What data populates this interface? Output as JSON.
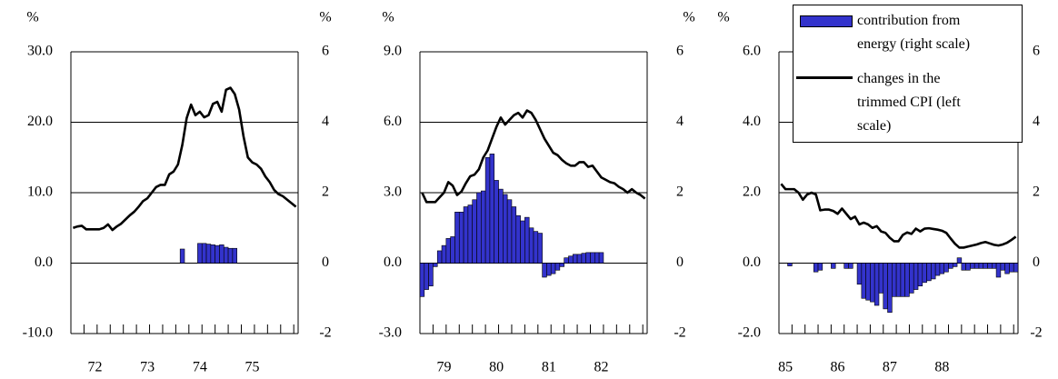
{
  "chart_data": [
    {
      "type": "combo",
      "ylabel": "%",
      "y2label": "%",
      "categories": [
        null,
        null,
        null,
        null,
        null,
        "72",
        null,
        null,
        null,
        null,
        null,
        null,
        null,
        null,
        null,
        null,
        null,
        "73",
        null,
        null,
        null,
        null,
        null,
        null,
        null,
        null,
        null,
        null,
        null,
        "74",
        null,
        null,
        null,
        null,
        null,
        null,
        null,
        null,
        null,
        null,
        null,
        "75",
        null,
        null,
        null,
        null,
        null,
        null,
        null,
        null,
        null,
        null
      ],
      "ylim": [
        -10,
        30
      ],
      "yticks": [
        {
          "value": -10,
          "label": "-10.0"
        },
        {
          "value": 0,
          "label": "0.0"
        },
        {
          "value": 10,
          "label": "10.0"
        },
        {
          "value": 20,
          "label": "20.0"
        },
        {
          "value": 30,
          "label": "30.0"
        }
      ],
      "y2lim": [
        -2,
        6
      ],
      "y2ticks": [
        -2,
        0,
        2,
        4,
        6
      ],
      "grid": true,
      "series": [
        {
          "type": "bar",
          "axis": "y2",
          "color": "#3333CC",
          "values": [
            null,
            null,
            null,
            null,
            null,
            null,
            null,
            null,
            null,
            null,
            null,
            null,
            null,
            null,
            null,
            null,
            null,
            null,
            null,
            null,
            null,
            null,
            null,
            null,
            null,
            0.4,
            null,
            null,
            null,
            0.56,
            0.56,
            0.54,
            0.52,
            0.5,
            0.52,
            0.45,
            0.42,
            0.42,
            null,
            null,
            null,
            null,
            null,
            null,
            null,
            null,
            null,
            null,
            null,
            null,
            null,
            null
          ]
        },
        {
          "type": "line",
          "color": "#000000",
          "values": [
            5.0,
            5.2,
            5.3,
            4.8,
            4.8,
            4.8,
            4.8,
            5.0,
            5.5,
            4.7,
            5.2,
            5.6,
            6.2,
            6.8,
            7.3,
            8.0,
            8.8,
            9.2,
            10.0,
            10.8,
            11.1,
            11.1,
            12.6,
            13.0,
            14.0,
            16.8,
            20.6,
            22.5,
            21.0,
            21.5,
            20.7,
            21.0,
            22.6,
            22.9,
            21.5,
            24.6,
            24.9,
            24.0,
            21.8,
            18.0,
            15.0,
            14.3,
            14.0,
            13.4,
            12.3,
            11.5,
            10.4,
            9.8,
            9.5,
            9.0,
            8.5,
            8.0
          ]
        }
      ]
    },
    {
      "type": "combo",
      "ylabel": "%",
      "y2label": "%",
      "categories": [
        null,
        null,
        null,
        null,
        null,
        "79",
        null,
        null,
        null,
        null,
        null,
        null,
        null,
        null,
        null,
        null,
        null,
        "80",
        null,
        null,
        null,
        null,
        null,
        null,
        null,
        null,
        null,
        null,
        null,
        "81",
        null,
        null,
        null,
        null,
        null,
        null,
        null,
        null,
        null,
        null,
        null,
        "82",
        null,
        null,
        null,
        null,
        null,
        null,
        null,
        null,
        null,
        null
      ],
      "ylim": [
        -3,
        9
      ],
      "yticks": [
        {
          "value": -3,
          "label": "-3.0"
        },
        {
          "value": 0,
          "label": "0.0"
        },
        {
          "value": 3,
          "label": "3.0"
        },
        {
          "value": 6,
          "label": "6.0"
        },
        {
          "value": 9,
          "label": "9.0"
        }
      ],
      "y2lim": [
        -2,
        6
      ],
      "y2ticks": [
        -2,
        0,
        2,
        4,
        6
      ],
      "grid": true,
      "series": [
        {
          "type": "bar",
          "axis": "y2",
          "color": "#3333CC",
          "values": [
            -0.95,
            -0.75,
            -0.65,
            -0.1,
            0.35,
            0.5,
            0.7,
            0.75,
            1.45,
            1.45,
            1.6,
            1.65,
            1.8,
            2.0,
            2.05,
            3.0,
            3.1,
            2.35,
            2.1,
            1.95,
            1.8,
            1.6,
            1.35,
            1.2,
            1.3,
            1.0,
            0.9,
            0.85,
            -0.4,
            -0.35,
            -0.3,
            -0.2,
            -0.1,
            0.15,
            0.2,
            0.25,
            0.25,
            0.28,
            0.3,
            0.3,
            0.3,
            0.3,
            null,
            null,
            null,
            null,
            null,
            null,
            null,
            null,
            null,
            null
          ]
        },
        {
          "type": "line",
          "color": "#000000",
          "values": [
            3.0,
            2.6,
            2.6,
            2.6,
            2.8,
            3.0,
            3.45,
            3.3,
            2.9,
            3.05,
            3.4,
            3.7,
            3.77,
            4.0,
            4.5,
            4.8,
            5.3,
            5.8,
            6.2,
            5.9,
            6.1,
            6.3,
            6.4,
            6.2,
            6.5,
            6.4,
            6.1,
            5.7,
            5.3,
            5.0,
            4.7,
            4.6,
            4.4,
            4.25,
            4.15,
            4.15,
            4.3,
            4.3,
            4.1,
            4.15,
            3.9,
            3.65,
            3.55,
            3.45,
            3.4,
            3.25,
            3.15,
            3.0,
            3.15,
            3.0,
            2.9,
            2.75
          ]
        }
      ]
    },
    {
      "type": "combo",
      "ylabel": "%",
      "legend": "top-right",
      "categories": [
        null,
        "85",
        null,
        null,
        null,
        null,
        null,
        null,
        null,
        null,
        null,
        null,
        null,
        "86",
        null,
        null,
        null,
        null,
        null,
        null,
        null,
        null,
        null,
        null,
        null,
        "87",
        null,
        null,
        null,
        null,
        null,
        null,
        null,
        null,
        null,
        null,
        null,
        "88",
        null,
        null,
        null,
        null,
        null,
        null,
        null,
        null,
        null,
        null,
        null,
        null,
        null,
        null,
        null,
        null,
        null
      ],
      "ylim": [
        -2,
        6
      ],
      "yticks": [
        {
          "value": -2,
          "label": "-2.0"
        },
        {
          "value": 0,
          "label": "0.0"
        },
        {
          "value": 2,
          "label": "2.0"
        },
        {
          "value": 4,
          "label": "4.0"
        },
        {
          "value": 6,
          "label": "6.0"
        }
      ],
      "y2lim": [
        -2,
        6
      ],
      "y2ticks": [
        -2,
        0,
        2,
        4,
        6
      ],
      "grid": true,
      "series": [
        {
          "type": "bar",
          "axis": "y2",
          "color": "#3333CC",
          "name": "contribution from energy (right scale)",
          "values": [
            null,
            null,
            -0.08,
            null,
            null,
            null,
            null,
            null,
            -0.25,
            -0.2,
            null,
            null,
            -0.15,
            null,
            null,
            -0.15,
            -0.15,
            null,
            -0.6,
            -1.0,
            -1.05,
            -1.1,
            -1.2,
            -0.85,
            -1.3,
            -1.4,
            -0.95,
            -0.95,
            -0.95,
            -0.95,
            -0.85,
            -0.75,
            -0.65,
            -0.55,
            -0.5,
            -0.45,
            -0.35,
            -0.3,
            -0.25,
            -0.15,
            -0.1,
            0.15,
            -0.2,
            -0.2,
            -0.15,
            -0.15,
            -0.15,
            -0.15,
            -0.15,
            -0.15,
            -0.4,
            -0.2,
            -0.3,
            -0.25,
            -0.25
          ]
        },
        {
          "type": "line",
          "color": "#000000",
          "name": "changes in the trimmed CPI (left scale)",
          "values": [
            2.25,
            2.1,
            2.1,
            2.1,
            2.0,
            1.8,
            1.95,
            2.0,
            1.95,
            1.5,
            1.52,
            1.52,
            1.48,
            1.4,
            1.55,
            1.4,
            1.25,
            1.32,
            1.1,
            1.15,
            1.1,
            1.0,
            1.05,
            0.9,
            0.86,
            0.72,
            0.62,
            0.62,
            0.8,
            0.87,
            0.83,
            0.98,
            0.9,
            0.98,
            0.99,
            0.97,
            0.95,
            0.92,
            0.86,
            0.7,
            0.55,
            0.44,
            0.44,
            0.47,
            0.5,
            0.53,
            0.57,
            0.6,
            0.56,
            0.52,
            0.5,
            0.53,
            0.58,
            0.66,
            0.75
          ]
        }
      ]
    }
  ]
}
